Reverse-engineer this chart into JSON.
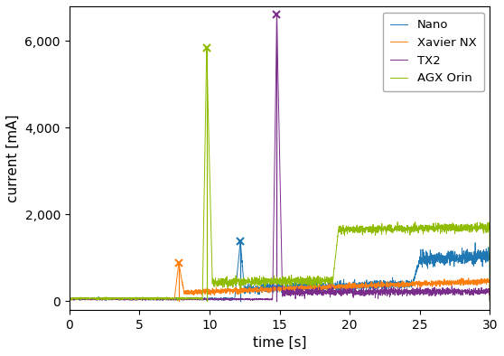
{
  "xlabel": "time [s]",
  "ylabel": "current [mA]",
  "xlim": [
    0,
    30
  ],
  "ylim": [
    -200,
    6800
  ],
  "yticks": [
    0,
    2000,
    4000,
    6000
  ],
  "xticks": [
    0,
    5,
    10,
    15,
    20,
    25,
    30
  ],
  "figsize": [
    5.58,
    3.94
  ],
  "dpi": 100,
  "series": {
    "Nano": {
      "color": "#1f77b4",
      "spike_x": 12.2,
      "spike_y": 1380,
      "segments": [
        {
          "t0": 0,
          "t1": 11.8,
          "v0": 50,
          "v1": 50,
          "noise": 12
        },
        {
          "t0": 11.8,
          "t1": 12.2,
          "v0": 50,
          "v1": 1380,
          "noise": 10
        },
        {
          "t0": 12.2,
          "t1": 12.5,
          "v0": 1380,
          "v1": 200,
          "noise": 30
        },
        {
          "t0": 12.5,
          "t1": 24.5,
          "v0": 270,
          "v1": 400,
          "noise": 50
        },
        {
          "t0": 24.5,
          "t1": 25.0,
          "v0": 400,
          "v1": 950,
          "noise": 30
        },
        {
          "t0": 25.0,
          "t1": 30.0,
          "v0": 950,
          "v1": 1050,
          "noise": 80
        }
      ]
    },
    "Xavier NX": {
      "color": "#ff7f0e",
      "spike_x": 7.8,
      "spike_y": 870,
      "segments": [
        {
          "t0": 0,
          "t1": 7.5,
          "v0": 50,
          "v1": 50,
          "noise": 10
        },
        {
          "t0": 7.5,
          "t1": 7.8,
          "v0": 50,
          "v1": 870,
          "noise": 10
        },
        {
          "t0": 7.8,
          "t1": 8.2,
          "v0": 870,
          "v1": 200,
          "noise": 20
        },
        {
          "t0": 8.2,
          "t1": 30.0,
          "v0": 200,
          "v1": 460,
          "noise": 30
        }
      ]
    },
    "TX2": {
      "color": "#7b2d8b",
      "spike_x": 14.8,
      "spike_y": 6620,
      "segments": [
        {
          "t0": 0,
          "t1": 14.5,
          "v0": 40,
          "v1": 40,
          "noise": 8
        },
        {
          "t0": 14.5,
          "t1": 14.8,
          "v0": 40,
          "v1": 6620,
          "noise": 10
        },
        {
          "t0": 14.8,
          "t1": 15.2,
          "v0": 6620,
          "v1": 200,
          "noise": 20
        },
        {
          "t0": 15.2,
          "t1": 30.0,
          "v0": 200,
          "v1": 220,
          "noise": 40
        }
      ]
    },
    "AGX Orin": {
      "color": "#8fbc00",
      "spike_x": 9.8,
      "spike_y": 5850,
      "segments": [
        {
          "t0": 0,
          "t1": 9.5,
          "v0": 60,
          "v1": 60,
          "noise": 12
        },
        {
          "t0": 9.5,
          "t1": 9.8,
          "v0": 60,
          "v1": 5850,
          "noise": 10
        },
        {
          "t0": 9.8,
          "t1": 10.2,
          "v0": 5850,
          "v1": 450,
          "noise": 20
        },
        {
          "t0": 10.2,
          "t1": 18.8,
          "v0": 430,
          "v1": 480,
          "noise": 50
        },
        {
          "t0": 18.8,
          "t1": 19.2,
          "v0": 480,
          "v1": 1650,
          "noise": 20
        },
        {
          "t0": 19.2,
          "t1": 30.0,
          "v0": 1650,
          "v1": 1700,
          "noise": 45
        }
      ]
    }
  }
}
